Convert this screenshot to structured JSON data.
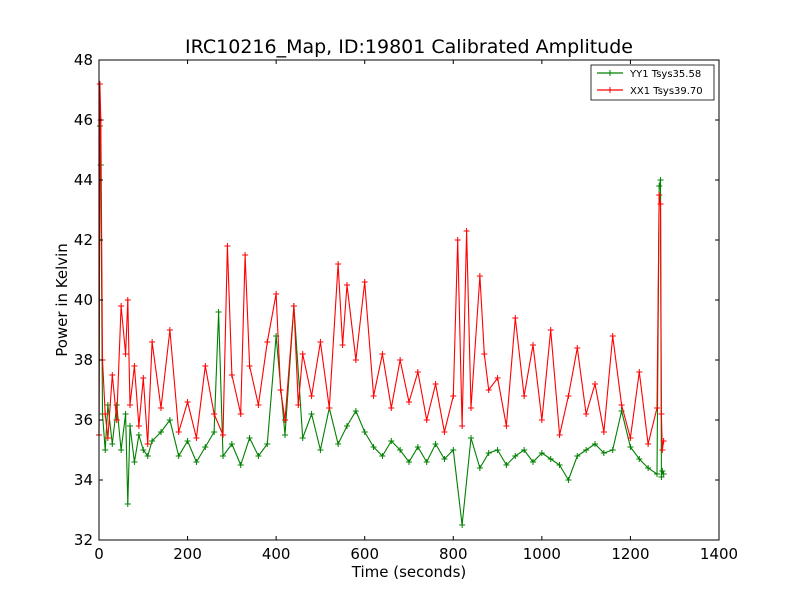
{
  "chart_data": {
    "type": "line",
    "title": "IRC10216_Map, ID:19801 Calibrated Amplitude",
    "xlabel": "Time (seconds)",
    "ylabel": "Power in Kelvin",
    "xlim": [
      0,
      1400
    ],
    "ylim": [
      32,
      48
    ],
    "xticks": [
      0,
      200,
      400,
      600,
      800,
      1000,
      1200,
      1400
    ],
    "yticks": [
      32,
      34,
      36,
      38,
      40,
      42,
      44,
      46,
      48
    ],
    "grid": false,
    "legend_position": "top-right",
    "marker": "plus",
    "series": [
      {
        "name": "YY1 Tsys35.58",
        "color": "#008000",
        "x": [
          0,
          2,
          4,
          8,
          14,
          20,
          30,
          40,
          50,
          60,
          65,
          70,
          80,
          90,
          100,
          110,
          120,
          140,
          160,
          180,
          200,
          220,
          240,
          260,
          270,
          280,
          300,
          320,
          340,
          360,
          380,
          400,
          420,
          440,
          460,
          480,
          500,
          520,
          540,
          560,
          580,
          600,
          620,
          640,
          660,
          680,
          700,
          720,
          740,
          760,
          780,
          800,
          820,
          840,
          860,
          880,
          900,
          920,
          940,
          960,
          980,
          1000,
          1020,
          1040,
          1060,
          1080,
          1100,
          1120,
          1140,
          1160,
          1180,
          1200,
          1220,
          1240,
          1260,
          1265,
          1268,
          1270,
          1272,
          1275
        ],
        "y": [
          35.5,
          45.8,
          44.5,
          36.2,
          35.0,
          36.5,
          35.2,
          36.5,
          35.0,
          36.2,
          33.2,
          35.8,
          34.6,
          35.5,
          35.0,
          34.8,
          35.3,
          35.6,
          36.0,
          34.8,
          35.3,
          34.6,
          35.1,
          35.6,
          39.6,
          34.8,
          35.2,
          34.5,
          35.4,
          34.8,
          35.2,
          38.8,
          35.5,
          39.8,
          35.4,
          36.2,
          35.0,
          36.4,
          35.2,
          35.8,
          36.3,
          35.6,
          35.1,
          34.8,
          35.3,
          35.0,
          34.6,
          35.1,
          34.6,
          35.2,
          34.7,
          35.0,
          32.5,
          35.4,
          34.4,
          34.9,
          35.0,
          34.5,
          34.8,
          35.0,
          34.6,
          34.9,
          34.7,
          34.5,
          34.0,
          34.8,
          35.0,
          35.2,
          34.9,
          35.0,
          36.3,
          35.1,
          34.7,
          34.4,
          34.2,
          43.8,
          44.0,
          34.1,
          34.3,
          34.2
        ]
      },
      {
        "name": "XX1 Tsys39.70",
        "color": "#ff0000",
        "x": [
          0,
          2,
          4,
          8,
          14,
          20,
          30,
          40,
          50,
          60,
          65,
          70,
          80,
          90,
          100,
          110,
          120,
          140,
          160,
          180,
          200,
          220,
          240,
          260,
          280,
          290,
          300,
          320,
          330,
          340,
          360,
          380,
          400,
          410,
          420,
          440,
          450,
          460,
          480,
          500,
          520,
          540,
          550,
          560,
          580,
          600,
          620,
          640,
          660,
          680,
          700,
          720,
          740,
          760,
          780,
          800,
          810,
          820,
          830,
          840,
          860,
          870,
          880,
          900,
          920,
          940,
          960,
          980,
          1000,
          1020,
          1040,
          1060,
          1080,
          1100,
          1120,
          1140,
          1160,
          1180,
          1200,
          1220,
          1240,
          1260,
          1265,
          1268,
          1270,
          1272,
          1275
        ],
        "y": [
          35.5,
          47.2,
          46.0,
          38.0,
          36.2,
          35.4,
          37.5,
          36.0,
          39.8,
          38.2,
          40.0,
          36.5,
          37.8,
          35.8,
          37.4,
          35.2,
          38.6,
          36.4,
          39.0,
          35.6,
          36.6,
          35.4,
          37.8,
          36.2,
          35.5,
          41.8,
          37.5,
          36.2,
          41.5,
          37.8,
          36.5,
          38.6,
          40.2,
          37.0,
          36.0,
          39.8,
          36.5,
          38.2,
          36.8,
          38.6,
          36.4,
          41.2,
          38.5,
          40.5,
          38.0,
          40.6,
          36.8,
          38.2,
          36.4,
          38.0,
          36.6,
          37.6,
          36.0,
          37.2,
          35.6,
          36.8,
          42.0,
          35.8,
          42.3,
          36.4,
          40.8,
          38.2,
          37.0,
          37.4,
          35.8,
          39.4,
          36.8,
          38.5,
          36.0,
          39.0,
          35.5,
          36.8,
          38.4,
          36.2,
          37.2,
          35.6,
          38.8,
          36.5,
          35.4,
          37.6,
          35.2,
          36.4,
          43.5,
          43.2,
          36.2,
          35.0,
          35.3
        ]
      }
    ]
  }
}
